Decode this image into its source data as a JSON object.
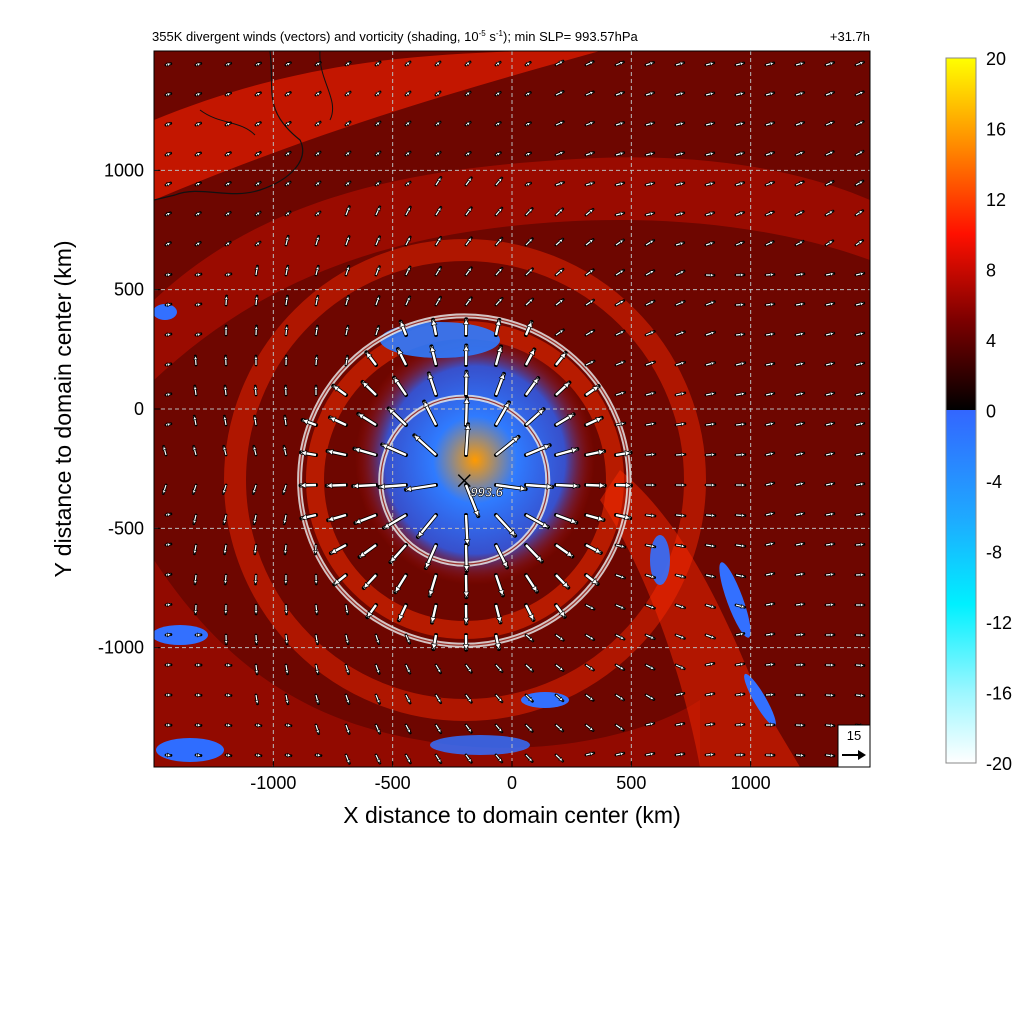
{
  "chart_data": {
    "type": "heatmap",
    "title": "355K divergent winds (vectors) and vorticity (shading, 10",
    "title_exp": "-5",
    "title_mid": " s",
    "title_exp2": "-1",
    "title_end": "); min SLP= 993.57hPa",
    "time_label": "+31.7h",
    "xlabel": "X distance to domain center (km)",
    "ylabel": "Y distance to domain center (km)",
    "xlim": [
      -1500,
      1500
    ],
    "ylim": [
      -1500,
      1500
    ],
    "x_ticks": [
      -1000,
      -500,
      0,
      500,
      1000
    ],
    "y_ticks": [
      -1000,
      -500,
      0,
      500,
      1000
    ],
    "grid": true,
    "colorbar": {
      "min": -20,
      "max": 20,
      "ticks": [
        20,
        16,
        12,
        8,
        4,
        0,
        -4,
        -8,
        -12,
        -16,
        -20
      ],
      "colors_negative": [
        "#ffffff",
        "#66f5ff",
        "#1fd2ff",
        "#3370ff"
      ],
      "colors_positive": [
        "#000000",
        "#7a0000",
        "#ff1a00",
        "#ff7f00",
        "#ffff00"
      ]
    },
    "center": {
      "x": -200,
      "y": -300,
      "min_slp_label": "993.6"
    },
    "rings_km": [
      {
        "cx": -200,
        "cy": -300,
        "r": 690
      },
      {
        "cx": -200,
        "cy": -300,
        "r": 350
      }
    ],
    "reference_vector": {
      "label": "15"
    }
  }
}
